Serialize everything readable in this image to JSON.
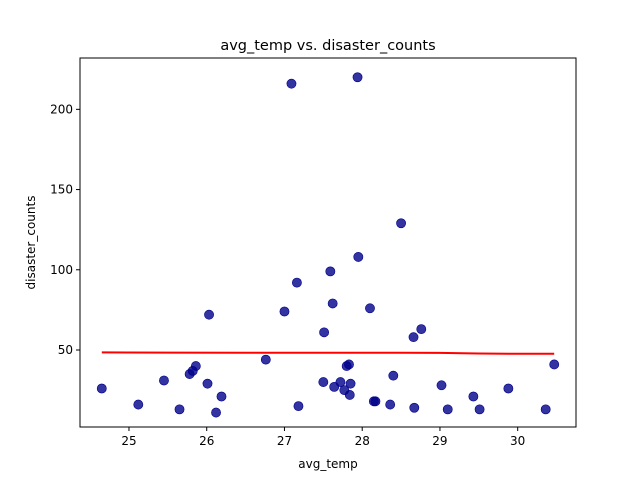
{
  "chart_data": {
    "type": "scatter",
    "title": "avg_temp vs. disaster_counts",
    "xlabel": "avg_temp",
    "ylabel": "disaster_counts",
    "xlim": [
      24.37,
      30.75
    ],
    "ylim": [
      2,
      232
    ],
    "xticks": [
      25,
      26,
      27,
      28,
      29,
      30
    ],
    "yticks": [
      50,
      100,
      150,
      200
    ],
    "grid": false,
    "colors": {
      "points": "#00008b",
      "trend": "#ff0000",
      "axes": "#000000"
    },
    "series": [
      {
        "points": [
          {
            "x": 24.65,
            "y": 26
          },
          {
            "x": 25.12,
            "y": 16
          },
          {
            "x": 25.45,
            "y": 31
          },
          {
            "x": 25.65,
            "y": 13
          },
          {
            "x": 25.78,
            "y": 35
          },
          {
            "x": 25.82,
            "y": 37
          },
          {
            "x": 25.86,
            "y": 40
          },
          {
            "x": 26.01,
            "y": 29
          },
          {
            "x": 26.03,
            "y": 72
          },
          {
            "x": 26.12,
            "y": 11
          },
          {
            "x": 26.19,
            "y": 21
          },
          {
            "x": 26.76,
            "y": 44
          },
          {
            "x": 27.0,
            "y": 74
          },
          {
            "x": 27.09,
            "y": 216
          },
          {
            "x": 27.16,
            "y": 92
          },
          {
            "x": 27.18,
            "y": 15
          },
          {
            "x": 27.5,
            "y": 30
          },
          {
            "x": 27.51,
            "y": 61
          },
          {
            "x": 27.59,
            "y": 99
          },
          {
            "x": 27.62,
            "y": 79
          },
          {
            "x": 27.64,
            "y": 27
          },
          {
            "x": 27.72,
            "y": 30
          },
          {
            "x": 27.77,
            "y": 25
          },
          {
            "x": 27.8,
            "y": 40
          },
          {
            "x": 27.83,
            "y": 41
          },
          {
            "x": 27.84,
            "y": 22
          },
          {
            "x": 27.85,
            "y": 29
          },
          {
            "x": 27.94,
            "y": 220
          },
          {
            "x": 27.95,
            "y": 108
          },
          {
            "x": 28.1,
            "y": 76
          },
          {
            "x": 28.15,
            "y": 18
          },
          {
            "x": 28.17,
            "y": 18
          },
          {
            "x": 28.36,
            "y": 16
          },
          {
            "x": 28.4,
            "y": 34
          },
          {
            "x": 28.5,
            "y": 129
          },
          {
            "x": 28.66,
            "y": 58
          },
          {
            "x": 28.67,
            "y": 14
          },
          {
            "x": 28.76,
            "y": 63
          },
          {
            "x": 29.02,
            "y": 28
          },
          {
            "x": 29.1,
            "y": 13
          },
          {
            "x": 29.43,
            "y": 21
          },
          {
            "x": 29.51,
            "y": 13
          },
          {
            "x": 29.88,
            "y": 26
          },
          {
            "x": 30.36,
            "y": 13
          },
          {
            "x": 30.47,
            "y": 41
          }
        ]
      }
    ],
    "trend_line": [
      {
        "x": 24.65,
        "y": 48.5
      },
      {
        "x": 25.5,
        "y": 48.4
      },
      {
        "x": 26.5,
        "y": 48.3
      },
      {
        "x": 27.5,
        "y": 48.3
      },
      {
        "x": 28.5,
        "y": 48.3
      },
      {
        "x": 29.0,
        "y": 48.2
      },
      {
        "x": 29.5,
        "y": 47.8
      },
      {
        "x": 30.0,
        "y": 47.6
      },
      {
        "x": 30.47,
        "y": 47.7
      }
    ]
  }
}
